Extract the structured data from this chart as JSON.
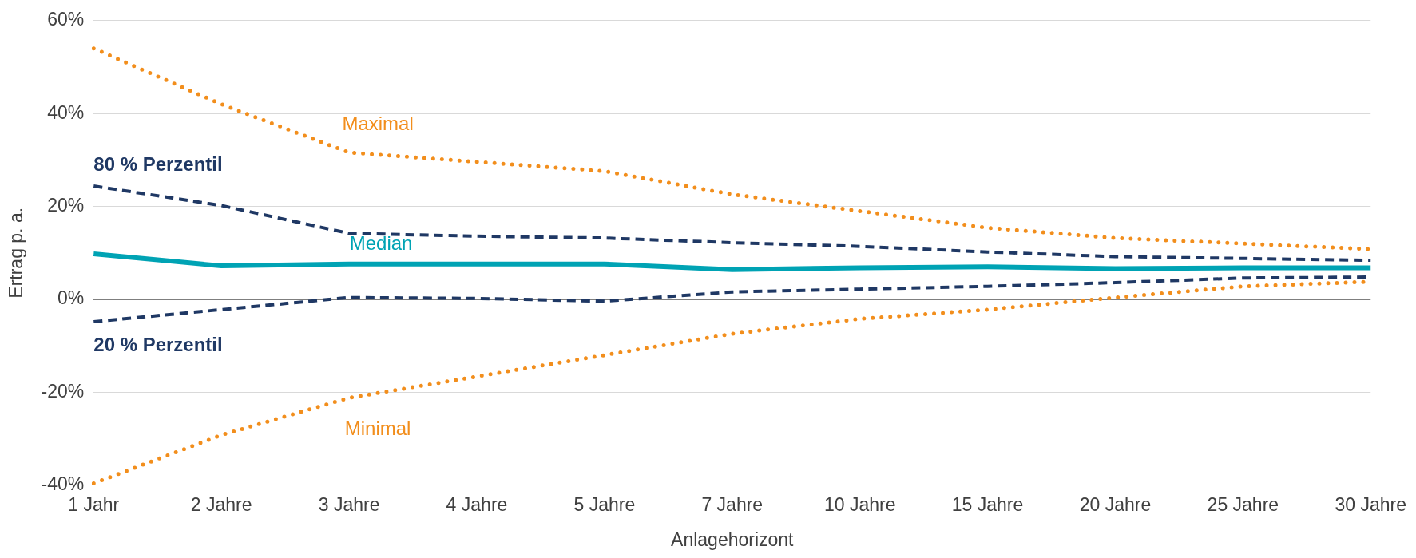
{
  "chart_data": {
    "type": "line",
    "xlabel": "Anlagehorizont",
    "ylabel": "Ertrag p. a.",
    "categories": [
      "1 Jahr",
      "2 Jahre",
      "3 Jahre",
      "4 Jahre",
      "5 Jahre",
      "7 Jahre",
      "10 Jahre",
      "15 Jahre",
      "20 Jahre",
      "25 Jahre",
      "30 Jahre"
    ],
    "series": [
      {
        "name": "Maximal",
        "color": "#f28e1c",
        "line_style": "dotted",
        "values": [
          54,
          42,
          31.6,
          29.6,
          27.6,
          22.6,
          19,
          15.4,
          13.2,
          12,
          10.8
        ]
      },
      {
        "name": "80 % Perzentil",
        "color": "#1f3864",
        "line_style": "dashed",
        "values": [
          24.4,
          20.2,
          14.2,
          13.6,
          13.2,
          12.2,
          11.4,
          10.2,
          9.2,
          8.8,
          8.4
        ]
      },
      {
        "name": "Median",
        "color": "#00a3b4",
        "line_style": "solid",
        "values": [
          9.8,
          7.2,
          7.6,
          7.6,
          7.6,
          6.4,
          6.8,
          7,
          6.6,
          6.8,
          6.8
        ]
      },
      {
        "name": "20 % Perzentil",
        "color": "#1f3864",
        "line_style": "dashed",
        "values": [
          -4.8,
          -2.2,
          0.4,
          0.2,
          -0.4,
          1.6,
          2.2,
          2.8,
          3.6,
          4.6,
          4.8
        ]
      },
      {
        "name": "Minimal",
        "color": "#f28e1c",
        "line_style": "dotted",
        "values": [
          -39.6,
          -29.2,
          -21.2,
          -16.6,
          -12,
          -7.4,
          -4.2,
          -2.2,
          0.4,
          2.8,
          3.8
        ]
      }
    ],
    "ylim": [
      -40,
      60
    ],
    "yticks": [
      {
        "value": -40,
        "label": "-40%"
      },
      {
        "value": -20,
        "label": "-20%"
      },
      {
        "value": 0,
        "label": "0%"
      },
      {
        "value": 20,
        "label": "20%"
      },
      {
        "value": 40,
        "label": "40%"
      },
      {
        "value": 60,
        "label": "60%"
      }
    ],
    "grid": "y",
    "legend": false,
    "marker": "none"
  }
}
